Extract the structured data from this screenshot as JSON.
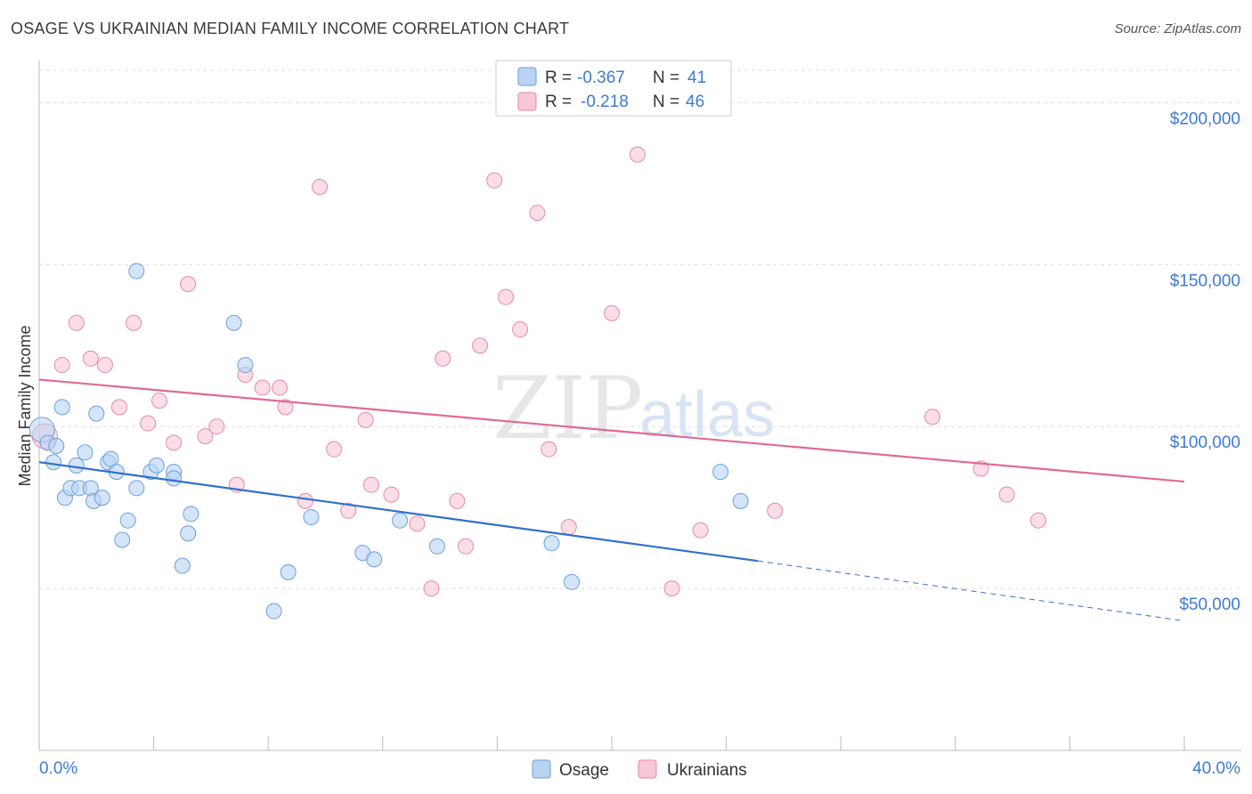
{
  "title": "OSAGE VS UKRAINIAN MEDIAN FAMILY INCOME CORRELATION CHART",
  "source": "Source: ZipAtlas.com",
  "watermark": {
    "part1": "ZIP",
    "part2": "atlas"
  },
  "colors": {
    "osage_fill": "#b9d3f3",
    "osage_stroke": "#6a9ee0",
    "osage_line": "#2f6fcd",
    "ukr_fill": "#f8c6d5",
    "ukr_stroke": "#e48aa8",
    "ukr_line": "#e06a92",
    "grid": "#dcdcdc",
    "accent_text": "#3d7bd1"
  },
  "legend_top": {
    "rows": [
      {
        "series": "Osage",
        "r_label": "R =",
        "r_value": "-0.367",
        "n_label": "N =",
        "n_value": "41"
      },
      {
        "series": "Ukrainians",
        "r_label": "R =",
        "r_value": "-0.218",
        "n_label": "N =",
        "n_value": "46"
      }
    ]
  },
  "chart_data": {
    "type": "scatter",
    "title": "OSAGE VS UKRAINIAN MEDIAN FAMILY INCOME CORRELATION CHART",
    "xlabel": "",
    "ylabel": "Median Family Income",
    "xlim": [
      0,
      40
    ],
    "ylim": [
      0,
      210000
    ],
    "x_tick_labels": [
      "0.0%",
      "40.0%"
    ],
    "y_ticks": [
      50000,
      100000,
      150000,
      200000
    ],
    "y_tick_labels": [
      "$50,000",
      "$100,000",
      "$150,000",
      "$200,000"
    ],
    "grid": true,
    "legend": [
      "Osage",
      "Ukrainians"
    ],
    "series": [
      {
        "name": "Osage",
        "r": -0.367,
        "n": 41,
        "trend": {
          "x0": 0,
          "y0": 89000,
          "x1": 25.1,
          "y1": 58500,
          "x_dash_end": 40,
          "y_dash_end": 40000
        },
        "points": [
          [
            0.1,
            99000
          ],
          [
            0.3,
            95000
          ],
          [
            0.5,
            89000
          ],
          [
            0.6,
            94000
          ],
          [
            0.8,
            106000
          ],
          [
            0.9,
            78000
          ],
          [
            1.1,
            81000
          ],
          [
            1.3,
            88000
          ],
          [
            1.4,
            81000
          ],
          [
            1.6,
            92000
          ],
          [
            1.8,
            81000
          ],
          [
            1.9,
            77000
          ],
          [
            2.0,
            104000
          ],
          [
            2.2,
            78000
          ],
          [
            2.4,
            89000
          ],
          [
            2.5,
            90000
          ],
          [
            2.7,
            86000
          ],
          [
            2.9,
            65000
          ],
          [
            3.1,
            71000
          ],
          [
            3.4,
            81000
          ],
          [
            3.4,
            148000
          ],
          [
            3.9,
            86000
          ],
          [
            4.1,
            88000
          ],
          [
            4.7,
            86000
          ],
          [
            4.7,
            84000
          ],
          [
            5.0,
            57000
          ],
          [
            5.2,
            67000
          ],
          [
            5.3,
            73000
          ],
          [
            6.8,
            132000
          ],
          [
            7.2,
            119000
          ],
          [
            8.2,
            43000
          ],
          [
            8.7,
            55000
          ],
          [
            9.5,
            72000
          ],
          [
            11.3,
            61000
          ],
          [
            11.7,
            59000
          ],
          [
            12.6,
            71000
          ],
          [
            13.9,
            63000
          ],
          [
            17.9,
            64000
          ],
          [
            18.6,
            52000
          ],
          [
            23.8,
            86000
          ],
          [
            24.5,
            77000
          ]
        ]
      },
      {
        "name": "Ukrainians",
        "r": -0.218,
        "n": 46,
        "trend": {
          "x0": 0,
          "y0": 114500,
          "x1": 40,
          "y1": 83000
        },
        "points": [
          [
            0.2,
            97000
          ],
          [
            0.8,
            119000
          ],
          [
            1.3,
            132000
          ],
          [
            1.8,
            121000
          ],
          [
            2.3,
            119000
          ],
          [
            2.8,
            106000
          ],
          [
            3.3,
            132000
          ],
          [
            3.8,
            101000
          ],
          [
            4.2,
            108000
          ],
          [
            4.7,
            95000
          ],
          [
            5.2,
            144000
          ],
          [
            5.8,
            97000
          ],
          [
            6.2,
            100000
          ],
          [
            6.9,
            82000
          ],
          [
            7.2,
            116000
          ],
          [
            7.8,
            112000
          ],
          [
            8.4,
            112000
          ],
          [
            8.6,
            106000
          ],
          [
            9.3,
            77000
          ],
          [
            9.8,
            174000
          ],
          [
            10.3,
            93000
          ],
          [
            10.8,
            74000
          ],
          [
            11.4,
            102000
          ],
          [
            11.6,
            82000
          ],
          [
            12.3,
            79000
          ],
          [
            13.2,
            70000
          ],
          [
            13.7,
            50000
          ],
          [
            14.1,
            121000
          ],
          [
            14.6,
            77000
          ],
          [
            14.9,
            63000
          ],
          [
            15.4,
            125000
          ],
          [
            15.9,
            176000
          ],
          [
            16.3,
            140000
          ],
          [
            16.8,
            130000
          ],
          [
            17.4,
            166000
          ],
          [
            17.8,
            93000
          ],
          [
            18.5,
            69000
          ],
          [
            20.0,
            135000
          ],
          [
            20.9,
            184000
          ],
          [
            22.1,
            50000
          ],
          [
            23.1,
            68000
          ],
          [
            25.7,
            74000
          ],
          [
            31.2,
            103000
          ],
          [
            32.9,
            87000
          ],
          [
            33.8,
            79000
          ],
          [
            34.9,
            71000
          ]
        ]
      }
    ]
  }
}
